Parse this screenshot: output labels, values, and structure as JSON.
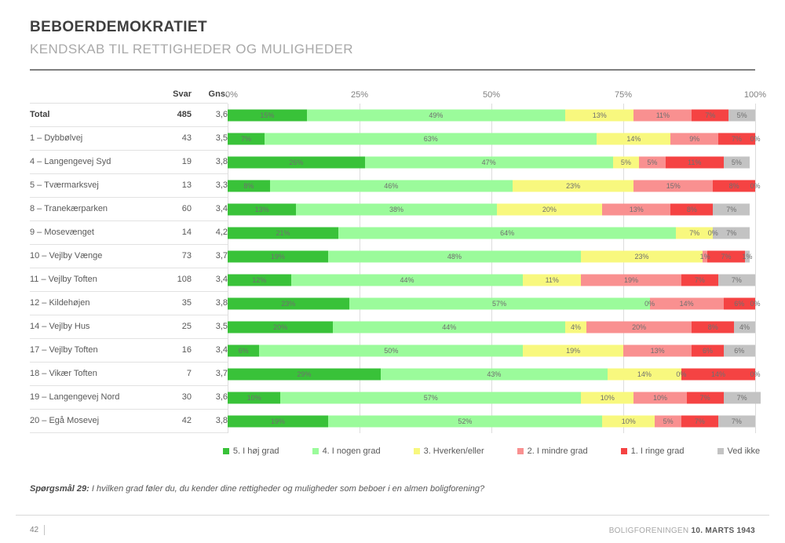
{
  "header": {
    "title": "BEBOERDEMOKRATIET",
    "subtitle": "KENDSKAB TIL RETTIGHEDER OG MULIGHEDER"
  },
  "table": {
    "svar_header": "Svar",
    "gns_header": "Gns."
  },
  "chart_data": {
    "type": "bar",
    "variant": "horizontal-stacked-100",
    "xlim": [
      0,
      100
    ],
    "x_ticks": [
      "0%",
      "25%",
      "50%",
      "75%",
      "100%"
    ],
    "grid": true,
    "legend_position": "bottom",
    "categories": [
      "Total",
      "1 – Dybbølvej",
      "4 – Langengevej Syd",
      "5 – Tværmarksvej",
      "8 – Tranekærparken",
      "9 – Mosevænget",
      "10 – Vejlby Vænge",
      "11 – Vejlby Toften",
      "12 – Kildehøjen",
      "14 – Vejlby Hus",
      "17 – Vejlby Toften",
      "18 – Vikær Toften",
      "19 – Langengevej Nord",
      "20 – Egå Mosevej"
    ],
    "svar": [
      "485",
      "43",
      "19",
      "13",
      "60",
      "14",
      "73",
      "108",
      "35",
      "25",
      "16",
      "7",
      "30",
      "42"
    ],
    "gns": [
      "3,6",
      "3,5",
      "3,8",
      "3,3",
      "3,4",
      "4,2",
      "3,7",
      "3,4",
      "3,8",
      "3,5",
      "3,4",
      "3,7",
      "3,6",
      "3,8"
    ],
    "bold_rows": [
      0
    ],
    "series": [
      {
        "name": "5. I høj grad",
        "color": "#39C239",
        "values": [
          15,
          7,
          26,
          8,
          13,
          21,
          19,
          12,
          23,
          20,
          6,
          29,
          10,
          19
        ]
      },
      {
        "name": "4. I nogen grad",
        "color": "#9BFB9B",
        "values": [
          49,
          63,
          47,
          46,
          38,
          64,
          48,
          44,
          57,
          44,
          50,
          43,
          57,
          52
        ]
      },
      {
        "name": "3. Hverken/eller",
        "color": "#F8F87E",
        "values": [
          13,
          14,
          5,
          23,
          20,
          7,
          23,
          11,
          0,
          4,
          19,
          14,
          10,
          10
        ]
      },
      {
        "name": "2. I mindre grad",
        "color": "#F99090",
        "values": [
          11,
          9,
          5,
          15,
          13,
          0,
          1,
          19,
          14,
          20,
          13,
          0,
          10,
          5
        ]
      },
      {
        "name": "1. I ringe grad",
        "color": "#F54343",
        "values": [
          7,
          7,
          11,
          8,
          8,
          0,
          7,
          7,
          6,
          8,
          6,
          14,
          7,
          7
        ]
      },
      {
        "name": "Ved ikke",
        "color": "#C3C3C3",
        "values": [
          5,
          0,
          5,
          0,
          7,
          7,
          1,
          7,
          0,
          4,
          6,
          0,
          7,
          7
        ]
      }
    ],
    "data_labels": [
      [
        "15%",
        "49%",
        "13%",
        "11%",
        "7%",
        "5%"
      ],
      [
        "7%",
        "63%",
        "14%",
        "9%",
        "7%",
        "0%"
      ],
      [
        "26%",
        "47%",
        "5%",
        "5%",
        "11%",
        "5%"
      ],
      [
        "8%",
        "46%",
        "23%",
        "15%",
        "8%",
        "0%"
      ],
      [
        "13%",
        "38%",
        "20%",
        "13%",
        "8%",
        "7%"
      ],
      [
        "21%",
        "64%",
        "7%",
        "0%",
        "",
        "7%"
      ],
      [
        "19%",
        "48%",
        "23%",
        "1%",
        "7%",
        "1%"
      ],
      [
        "12%",
        "44%",
        "11%",
        "19%",
        "7%",
        "7%"
      ],
      [
        "23%",
        "57%",
        "0%",
        "14%",
        "6%",
        "0%"
      ],
      [
        "20%",
        "44%",
        "4%",
        "20%",
        "8%",
        "4%"
      ],
      [
        "6%",
        "50%",
        "19%",
        "13%",
        "6%",
        "6%"
      ],
      [
        "29%",
        "43%",
        "14%",
        "0%",
        "14%",
        "0%"
      ],
      [
        "10%",
        "57%",
        "10%",
        "10%",
        "7%",
        "7%"
      ],
      [
        "19%",
        "52%",
        "10%",
        "5%",
        "7%",
        "7%"
      ]
    ]
  },
  "footnote": {
    "prefix": "Spørgsmål 29:",
    "text": "I hvilken grad føler du, du kender dine rettigheder og muligheder som beboer i en almen boligforening?"
  },
  "footer": {
    "page": "42",
    "org": "BOLIGFORENINGEN",
    "date": "10. MARTS 1943"
  }
}
